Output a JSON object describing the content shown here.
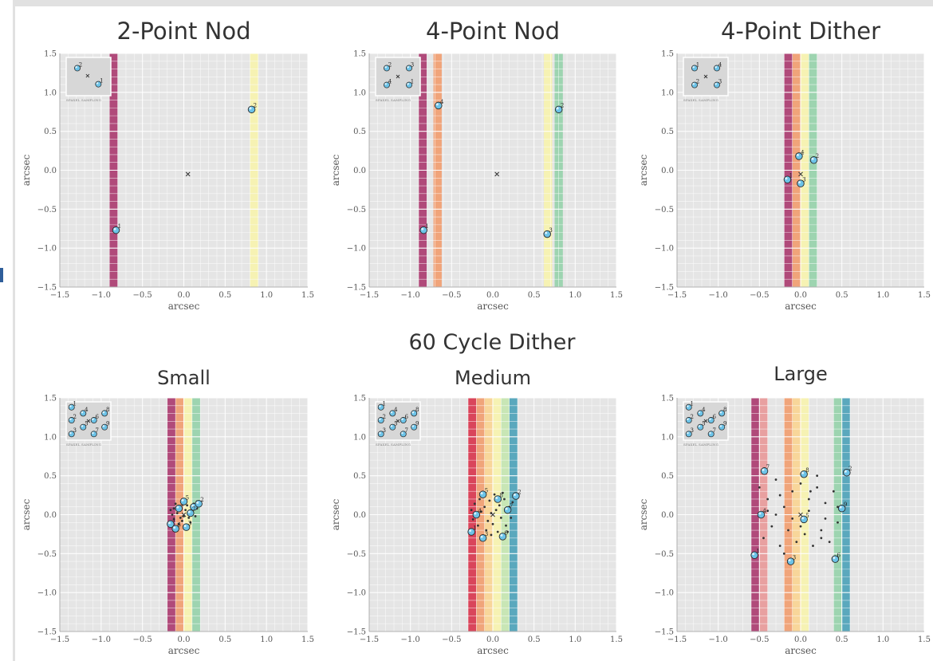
{
  "group_title": "60 Cycle Dither",
  "inset_label": "SPAXEL SAMPLING",
  "chart_data": [
    {
      "type": "scatter",
      "title": "2-Point Nod",
      "xlabel": "arcsec",
      "ylabel": "arcsec",
      "xlim": [
        -1.5,
        1.5
      ],
      "ylim": [
        -1.5,
        1.5
      ],
      "xticks": [
        "−1.5",
        "−1.0",
        "−0.5",
        "0.0",
        "0.5",
        "1.0",
        "1.5"
      ],
      "yticks": [
        "−1.5",
        "−1.0",
        "−0.5",
        "0.0",
        "0.5",
        "1.0",
        "1.5"
      ],
      "grid": true,
      "center": [
        0.05,
        -0.05
      ],
      "bands": [
        {
          "x0": -0.9,
          "x1": -0.8,
          "color": "#b04a7a"
        },
        {
          "x0": 0.8,
          "x1": 0.9,
          "color": "#f6f2b3"
        }
      ],
      "points": [
        {
          "x": -0.82,
          "y": -0.77,
          "label": "1"
        },
        {
          "x": 0.82,
          "y": 0.78,
          "label": "2"
        }
      ],
      "inset": [
        {
          "x": 0.25,
          "y": 0.72,
          "label": "2"
        },
        {
          "x": 0.72,
          "y": 0.3,
          "label": "1"
        }
      ],
      "inset_center": [
        0.48,
        0.52
      ],
      "scatter": []
    },
    {
      "type": "scatter",
      "title": "4-Point Nod",
      "xlabel": "arcsec",
      "ylabel": "arcsec",
      "xlim": [
        -1.5,
        1.5
      ],
      "ylim": [
        -1.5,
        1.5
      ],
      "xticks": [
        "−1.5",
        "−1.0",
        "−0.5",
        "0.0",
        "0.5",
        "1.0",
        "1.5"
      ],
      "yticks": [
        "−1.5",
        "−1.0",
        "−0.5",
        "0.0",
        "0.5",
        "1.0",
        "1.5"
      ],
      "grid": true,
      "center": [
        0.05,
        -0.05
      ],
      "bands": [
        {
          "x0": -0.9,
          "x1": -0.8,
          "color": "#b04a7a"
        },
        {
          "x0": -0.72,
          "x1": -0.62,
          "color": "#f0a47a"
        },
        {
          "x0": 0.62,
          "x1": 0.72,
          "color": "#f6f2b3"
        },
        {
          "x0": 0.75,
          "x1": 0.85,
          "color": "#9dd4b0"
        }
      ],
      "points": [
        {
          "x": -0.84,
          "y": -0.77,
          "label": "1"
        },
        {
          "x": -0.66,
          "y": 0.83,
          "label": "4"
        },
        {
          "x": 0.66,
          "y": -0.82,
          "label": "3"
        },
        {
          "x": 0.8,
          "y": 0.78,
          "label": "2"
        }
      ],
      "inset": [
        {
          "x": 0.25,
          "y": 0.72,
          "label": "2"
        },
        {
          "x": 0.75,
          "y": 0.72,
          "label": "3"
        },
        {
          "x": 0.25,
          "y": 0.28,
          "label": "4"
        },
        {
          "x": 0.75,
          "y": 0.28,
          "label": "1"
        }
      ],
      "inset_center": [
        0.5,
        0.5
      ],
      "scatter": []
    },
    {
      "type": "scatter",
      "title": "4-Point Dither",
      "xlabel": "arcsec",
      "ylabel": "arcsec",
      "xlim": [
        -1.5,
        1.5
      ],
      "ylim": [
        -1.5,
        1.5
      ],
      "xticks": [
        "−1.5",
        "−1.0",
        "−0.5",
        "0.0",
        "0.5",
        "1.0",
        "1.5"
      ],
      "yticks": [
        "−1.5",
        "−1.0",
        "−0.5",
        "0.0",
        "0.5",
        "1.0",
        "1.5"
      ],
      "grid": true,
      "center": [
        0.0,
        -0.05
      ],
      "bands": [
        {
          "x0": -0.2,
          "x1": -0.1,
          "color": "#b04a7a"
        },
        {
          "x0": -0.1,
          "x1": 0.0,
          "color": "#f0a47a"
        },
        {
          "x0": 0.0,
          "x1": 0.1,
          "color": "#f6f2b3"
        },
        {
          "x0": 0.1,
          "x1": 0.2,
          "color": "#9dd4b0"
        }
      ],
      "points": [
        {
          "x": -0.16,
          "y": -0.12,
          "label": "1"
        },
        {
          "x": -0.02,
          "y": 0.18,
          "label": "4"
        },
        {
          "x": 0.0,
          "y": -0.17,
          "label": "3"
        },
        {
          "x": 0.16,
          "y": 0.13,
          "label": "2"
        }
      ],
      "inset": [
        {
          "x": 0.25,
          "y": 0.72,
          "label": "1"
        },
        {
          "x": 0.75,
          "y": 0.72,
          "label": "4"
        },
        {
          "x": 0.25,
          "y": 0.28,
          "label": "2"
        },
        {
          "x": 0.75,
          "y": 0.28,
          "label": "3"
        }
      ],
      "inset_center": [
        0.5,
        0.5
      ],
      "scatter": []
    },
    {
      "type": "scatter",
      "title": "Small",
      "xlabel": "arcsec",
      "ylabel": "arcsec",
      "xlim": [
        -1.5,
        1.5
      ],
      "ylim": [
        -1.5,
        1.5
      ],
      "xticks": [
        "−1.5",
        "−1.0",
        "−0.5",
        "0.0",
        "0.5",
        "1.0",
        "1.5"
      ],
      "yticks": [
        "−1.5",
        "−1.0",
        "−0.5",
        "0.0",
        "0.5",
        "1.0",
        "1.5"
      ],
      "grid": true,
      "center": [
        0.0,
        0.0
      ],
      "bands": [
        {
          "x0": -0.2,
          "x1": -0.1,
          "color": "#b04a7a"
        },
        {
          "x0": -0.1,
          "x1": 0.0,
          "color": "#f0a47a"
        },
        {
          "x0": 0.0,
          "x1": 0.1,
          "color": "#f6f2b3"
        },
        {
          "x0": 0.1,
          "x1": 0.2,
          "color": "#9dd4b0"
        }
      ],
      "points": [
        {
          "x": -0.16,
          "y": -0.12,
          "label": "1"
        },
        {
          "x": -0.1,
          "y": -0.18,
          "label": "6"
        },
        {
          "x": -0.06,
          "y": 0.08,
          "label": "4"
        },
        {
          "x": 0.0,
          "y": 0.17,
          "label": "5"
        },
        {
          "x": 0.03,
          "y": -0.16,
          "label": "3"
        },
        {
          "x": 0.12,
          "y": 0.1,
          "label": "8"
        },
        {
          "x": 0.18,
          "y": 0.14,
          "label": "2"
        },
        {
          "x": 0.08,
          "y": 0.02,
          "label": "7"
        }
      ],
      "inset": [
        {
          "x": 0.12,
          "y": 0.86,
          "label": "1"
        },
        {
          "x": 0.12,
          "y": 0.52,
          "label": "2"
        },
        {
          "x": 0.12,
          "y": 0.16,
          "label": "3"
        },
        {
          "x": 0.38,
          "y": 0.7,
          "label": "4"
        },
        {
          "x": 0.38,
          "y": 0.34,
          "label": "5"
        },
        {
          "x": 0.62,
          "y": 0.52,
          "label": "6"
        },
        {
          "x": 0.62,
          "y": 0.16,
          "label": "7"
        },
        {
          "x": 0.86,
          "y": 0.7,
          "label": "8"
        },
        {
          "x": 0.86,
          "y": 0.34,
          "label": "9"
        }
      ],
      "inset_center": [
        0.5,
        0.5
      ],
      "scatter": [
        [
          -0.12,
          0.08
        ],
        [
          -0.08,
          0.02
        ],
        [
          -0.04,
          0.1
        ],
        [
          0.02,
          0.06
        ],
        [
          0.06,
          -0.04
        ],
        [
          0.1,
          0.04
        ],
        [
          -0.14,
          0.0
        ],
        [
          -0.02,
          -0.08
        ],
        [
          0.04,
          0.12
        ],
        [
          0.14,
          -0.02
        ],
        [
          -0.06,
          -0.12
        ],
        [
          0.08,
          -0.1
        ],
        [
          -0.1,
          0.14
        ],
        [
          0.0,
          -0.02
        ],
        [
          0.12,
          0.14
        ],
        [
          -0.16,
          0.06
        ],
        [
          0.16,
          0.08
        ],
        [
          -0.04,
          -0.04
        ],
        [
          0.06,
          0.0
        ],
        [
          -0.12,
          -0.06
        ]
      ]
    },
    {
      "type": "scatter",
      "title": "Medium",
      "xlabel": "arcsec",
      "ylabel": "arcsec",
      "xlim": [
        -1.5,
        1.5
      ],
      "ylim": [
        -1.5,
        1.5
      ],
      "xticks": [
        "−1.5",
        "−1.0",
        "−0.5",
        "0.0",
        "0.5",
        "1.0",
        "1.5"
      ],
      "yticks": [
        "−1.5",
        "−1.0",
        "−0.5",
        "0.0",
        "0.5",
        "1.0",
        "1.5"
      ],
      "grid": true,
      "center": [
        0.0,
        0.0
      ],
      "bands": [
        {
          "x0": -0.3,
          "x1": -0.2,
          "color": "#d9455b"
        },
        {
          "x0": -0.2,
          "x1": -0.1,
          "color": "#f0a47a"
        },
        {
          "x0": -0.1,
          "x1": 0.0,
          "color": "#f8d69a"
        },
        {
          "x0": 0.0,
          "x1": 0.1,
          "color": "#f6f2b3"
        },
        {
          "x0": 0.1,
          "x1": 0.2,
          "color": "#c8e6b5"
        },
        {
          "x0": 0.2,
          "x1": 0.3,
          "color": "#5aa8bd"
        }
      ],
      "points": [
        {
          "x": -0.26,
          "y": -0.22,
          "label": "1"
        },
        {
          "x": -0.2,
          "y": 0.0,
          "label": "4"
        },
        {
          "x": -0.12,
          "y": -0.3,
          "label": "3"
        },
        {
          "x": -0.12,
          "y": 0.26,
          "label": "5"
        },
        {
          "x": 0.06,
          "y": 0.2,
          "label": "8"
        },
        {
          "x": 0.12,
          "y": -0.28,
          "label": "6"
        },
        {
          "x": 0.18,
          "y": 0.06,
          "label": "7"
        },
        {
          "x": 0.28,
          "y": 0.24,
          "label": "2"
        }
      ],
      "inset": [
        {
          "x": 0.12,
          "y": 0.86,
          "label": "1"
        },
        {
          "x": 0.12,
          "y": 0.52,
          "label": "2"
        },
        {
          "x": 0.12,
          "y": 0.16,
          "label": "3"
        },
        {
          "x": 0.38,
          "y": 0.7,
          "label": "4"
        },
        {
          "x": 0.38,
          "y": 0.34,
          "label": "5"
        },
        {
          "x": 0.62,
          "y": 0.52,
          "label": "6"
        },
        {
          "x": 0.62,
          "y": 0.16,
          "label": "7"
        },
        {
          "x": 0.86,
          "y": 0.7,
          "label": "8"
        },
        {
          "x": 0.86,
          "y": 0.34,
          "label": "9"
        }
      ],
      "inset_center": [
        0.5,
        0.5
      ],
      "scatter": [
        [
          -0.22,
          0.14
        ],
        [
          -0.16,
          0.2
        ],
        [
          -0.1,
          0.1
        ],
        [
          -0.04,
          0.18
        ],
        [
          0.02,
          0.26
        ],
        [
          0.08,
          0.12
        ],
        [
          0.14,
          0.2
        ],
        [
          0.2,
          0.1
        ],
        [
          -0.24,
          -0.06
        ],
        [
          -0.18,
          -0.14
        ],
        [
          -0.08,
          -0.2
        ],
        [
          0.0,
          -0.12
        ],
        [
          0.06,
          -0.22
        ],
        [
          0.16,
          -0.14
        ],
        [
          0.22,
          -0.04
        ],
        [
          -0.14,
          0.04
        ],
        [
          -0.02,
          0.02
        ],
        [
          0.1,
          -0.04
        ],
        [
          0.04,
          0.06
        ],
        [
          -0.06,
          -0.08
        ],
        [
          0.24,
          0.16
        ],
        [
          -0.26,
          0.06
        ],
        [
          0.12,
          0.28
        ],
        [
          -0.02,
          -0.26
        ],
        [
          0.18,
          -0.22
        ]
      ]
    },
    {
      "type": "scatter",
      "title": "Large",
      "xlabel": "arcsec",
      "ylabel": "arcsec",
      "xlim": [
        -1.5,
        1.5
      ],
      "ylim": [
        -1.5,
        1.5
      ],
      "xticks": [
        "−1.5",
        "−1.0",
        "−0.5",
        "0.0",
        "0.5",
        "1.0",
        "1.5"
      ],
      "yticks": [
        "−1.5",
        "−1.0",
        "−0.5",
        "0.0",
        "0.5",
        "1.0",
        "1.5"
      ],
      "grid": true,
      "center": [
        0.0,
        0.0
      ],
      "bands": [
        {
          "x0": -0.6,
          "x1": -0.5,
          "color": "#b04a7a"
        },
        {
          "x0": -0.5,
          "x1": -0.4,
          "color": "#e8a0a0"
        },
        {
          "x0": -0.2,
          "x1": -0.1,
          "color": "#f0a47a"
        },
        {
          "x0": -0.1,
          "x1": 0.0,
          "color": "#f8d69a"
        },
        {
          "x0": 0.0,
          "x1": 0.1,
          "color": "#f6f2b3"
        },
        {
          "x0": 0.4,
          "x1": 0.5,
          "color": "#9dd4b0"
        },
        {
          "x0": 0.5,
          "x1": 0.6,
          "color": "#5aa8bd"
        }
      ],
      "points": [
        {
          "x": -0.56,
          "y": -0.52,
          "label": "1"
        },
        {
          "x": -0.48,
          "y": 0.0,
          "label": "4"
        },
        {
          "x": -0.44,
          "y": 0.56,
          "label": "7"
        },
        {
          "x": -0.12,
          "y": -0.6,
          "label": "3"
        },
        {
          "x": 0.04,
          "y": -0.06,
          "label": "5"
        },
        {
          "x": 0.04,
          "y": 0.52,
          "label": "8"
        },
        {
          "x": 0.42,
          "y": -0.57,
          "label": "6"
        },
        {
          "x": 0.5,
          "y": 0.08,
          "label": "9"
        },
        {
          "x": 0.56,
          "y": 0.54,
          "label": "2"
        }
      ],
      "inset": [
        {
          "x": 0.12,
          "y": 0.86,
          "label": "1"
        },
        {
          "x": 0.12,
          "y": 0.52,
          "label": "2"
        },
        {
          "x": 0.12,
          "y": 0.16,
          "label": "3"
        },
        {
          "x": 0.38,
          "y": 0.7,
          "label": "4"
        },
        {
          "x": 0.38,
          "y": 0.34,
          "label": "5"
        },
        {
          "x": 0.62,
          "y": 0.52,
          "label": "6"
        },
        {
          "x": 0.62,
          "y": 0.16,
          "label": "7"
        },
        {
          "x": 0.86,
          "y": 0.7,
          "label": "8"
        },
        {
          "x": 0.86,
          "y": 0.34,
          "label": "9"
        }
      ],
      "inset_center": [
        0.5,
        0.5
      ],
      "scatter": [
        [
          -0.5,
          0.35
        ],
        [
          -0.4,
          0.2
        ],
        [
          -0.3,
          0.45
        ],
        [
          -0.2,
          0.1
        ],
        [
          -0.1,
          0.3
        ],
        [
          0.0,
          0.4
        ],
        [
          0.1,
          0.2
        ],
        [
          0.2,
          0.35
        ],
        [
          0.3,
          0.15
        ],
        [
          0.4,
          0.3
        ],
        [
          -0.45,
          -0.3
        ],
        [
          -0.35,
          -0.15
        ],
        [
          -0.25,
          -0.4
        ],
        [
          -0.15,
          -0.2
        ],
        [
          -0.05,
          -0.35
        ],
        [
          0.05,
          -0.25
        ],
        [
          0.15,
          -0.4
        ],
        [
          0.25,
          -0.2
        ],
        [
          0.35,
          -0.35
        ],
        [
          0.45,
          -0.1
        ],
        [
          -0.3,
          0.0
        ],
        [
          -0.1,
          -0.05
        ],
        [
          0.1,
          0.05
        ],
        [
          0.3,
          -0.05
        ],
        [
          -0.2,
          -0.5
        ],
        [
          0.2,
          0.5
        ],
        [
          -0.4,
          0.05
        ],
        [
          0.45,
          0.1
        ],
        [
          0.0,
          -0.15
        ],
        [
          -0.25,
          0.25
        ],
        [
          0.25,
          -0.3
        ],
        [
          0.12,
          0.3
        ]
      ]
    }
  ]
}
